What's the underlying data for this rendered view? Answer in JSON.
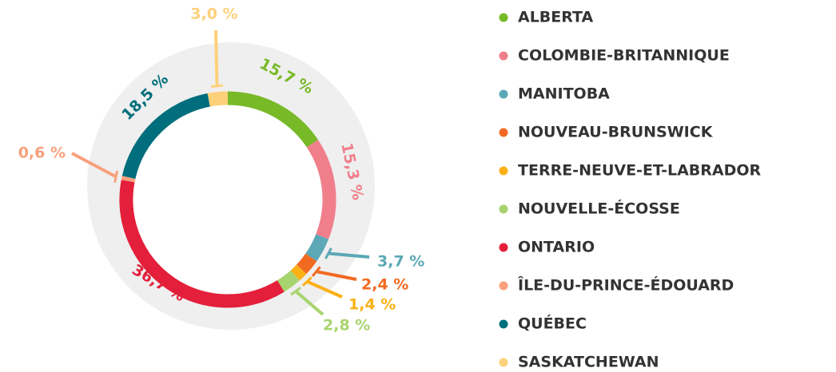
{
  "chart_data": {
    "type": "donut",
    "categories": [
      "ALBERTA",
      "COLOMBIE-BRITANNIQUE",
      "MANITOBA",
      "NOUVEAU-BRUNSWICK",
      "TERRE-NEUVE-ET-LABRADOR",
      "NOUVELLE-ÉCOSSE",
      "ONTARIO",
      "ÎLE-DU-PRINCE-ÉDOUARD",
      "QUÉBEC",
      "SASKATCHEWAN"
    ],
    "values": [
      15.7,
      15.3,
      3.7,
      2.4,
      1.4,
      2.8,
      36.7,
      0.6,
      18.5,
      3.0
    ],
    "value_labels": [
      "15,7 %",
      "15,3 %",
      "3,7 %",
      "2,4 %",
      "1,4 %",
      "2,8 %",
      "36,7 %",
      "0,6 %",
      "18,5 %",
      "3,0 %"
    ],
    "colors": [
      "#78b928",
      "#f07f8b",
      "#5ca8b6",
      "#f26a22",
      "#fbb016",
      "#a8d46f",
      "#e31f3b",
      "#f8a07c",
      "#006e7c",
      "#fdd17a"
    ]
  }
}
